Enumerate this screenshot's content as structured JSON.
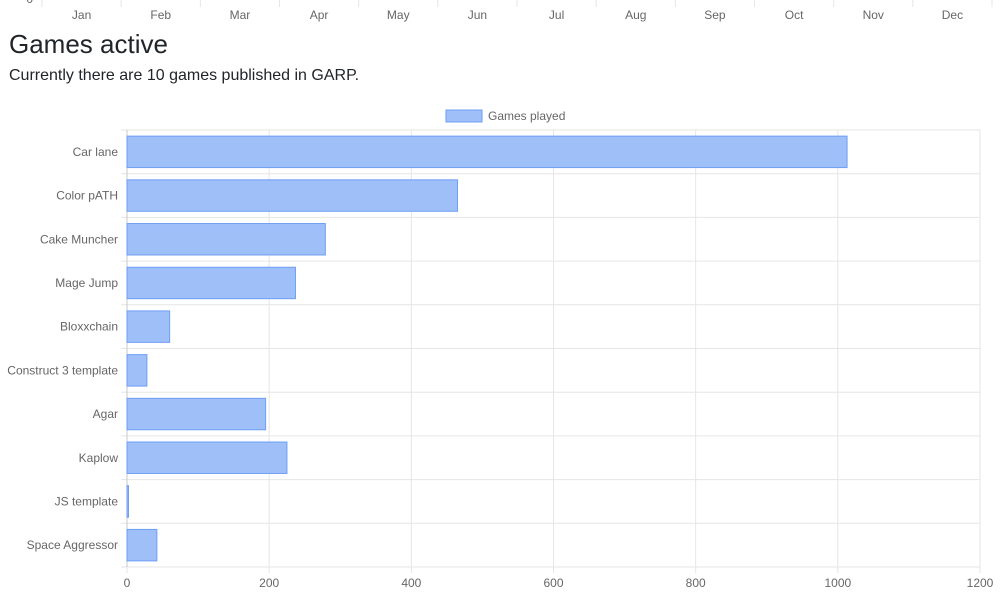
{
  "previous_chart": {
    "months": [
      "Jan",
      "Feb",
      "Mar",
      "Apr",
      "May",
      "Jun",
      "Jul",
      "Aug",
      "Sep",
      "Oct",
      "Nov",
      "Dec"
    ],
    "y_tick_visible": "0"
  },
  "section": {
    "title": "Games active",
    "description": "Currently there are 10 games published in GARP."
  },
  "chart_data": {
    "type": "bar",
    "orientation": "horizontal",
    "categories": [
      "Car lane",
      "Color pATH",
      "Cake Muncher",
      "Mage Jump",
      "Bloxxchain",
      "Construct 3 template",
      "Agar",
      "Kaplow",
      "JS template",
      "Space Aggressor"
    ],
    "series": [
      {
        "name": "Games played",
        "values": [
          1013,
          465,
          279,
          237,
          60,
          28,
          195,
          225,
          2,
          42
        ]
      }
    ],
    "xlim": [
      0,
      1200
    ],
    "xticks": [
      0,
      200,
      400,
      600,
      800,
      1000,
      1200
    ],
    "grid": true,
    "legend": "top-center",
    "colors": {
      "bar_fill": "#9ebff8",
      "bar_stroke": "#6f9ef5",
      "grid": "#e6e6e6",
      "axis": "#c8c8c8",
      "tick_text": "#666666"
    }
  }
}
